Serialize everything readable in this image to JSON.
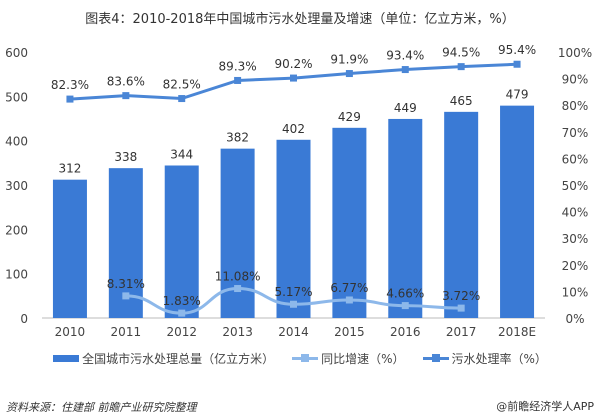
{
  "title": "图表4：2010-2018年中国城市污水处理量及增速（单位：亿立方米，%）",
  "chart_data": {
    "type": "bar+line",
    "categories": [
      "2010",
      "2011",
      "2012",
      "2013",
      "2014",
      "2015",
      "2016",
      "2017",
      "2018E"
    ],
    "series": [
      {
        "name": "全国城市污水处理总量（亿立方米）",
        "type": "bar",
        "axis": "left",
        "color": "#3a7ad5",
        "values": [
          312,
          338,
          344,
          382,
          402,
          429,
          449,
          465,
          479
        ]
      },
      {
        "name": "同比增速（%）",
        "type": "line",
        "axis": "right",
        "color": "#8db8ea",
        "values": [
          null,
          8.31,
          1.83,
          11.08,
          5.17,
          6.77,
          4.66,
          3.72,
          null
        ],
        "labels": [
          "",
          "8.31%",
          "1.83%",
          "11.08%",
          "5.17%",
          "6.77%",
          "4.66%",
          "3.72%",
          ""
        ]
      },
      {
        "name": "污水处理率（%）",
        "type": "line",
        "axis": "right",
        "color": "#4a86d6",
        "values": [
          82.3,
          83.6,
          82.5,
          89.3,
          90.2,
          91.9,
          93.4,
          94.5,
          95.4
        ],
        "labels": [
          "82.3%",
          "83.6%",
          "82.5%",
          "89.3%",
          "90.2%",
          "91.9%",
          "93.4%",
          "94.5%",
          "95.4%"
        ]
      }
    ],
    "ylim_left": [
      0,
      600
    ],
    "yticks_left": [
      "0",
      "100",
      "200",
      "300",
      "400",
      "500",
      "600"
    ],
    "ylim_right": [
      0,
      100
    ],
    "yticks_right": [
      "0%",
      "10%",
      "20%",
      "30%",
      "40%",
      "50%",
      "60%",
      "70%",
      "80%",
      "90%",
      "100%"
    ],
    "grid": false,
    "legend": "bottom"
  },
  "source": "资料来源：住建部 前瞻产业研究院整理",
  "brand": "@前瞻经济学人APP"
}
